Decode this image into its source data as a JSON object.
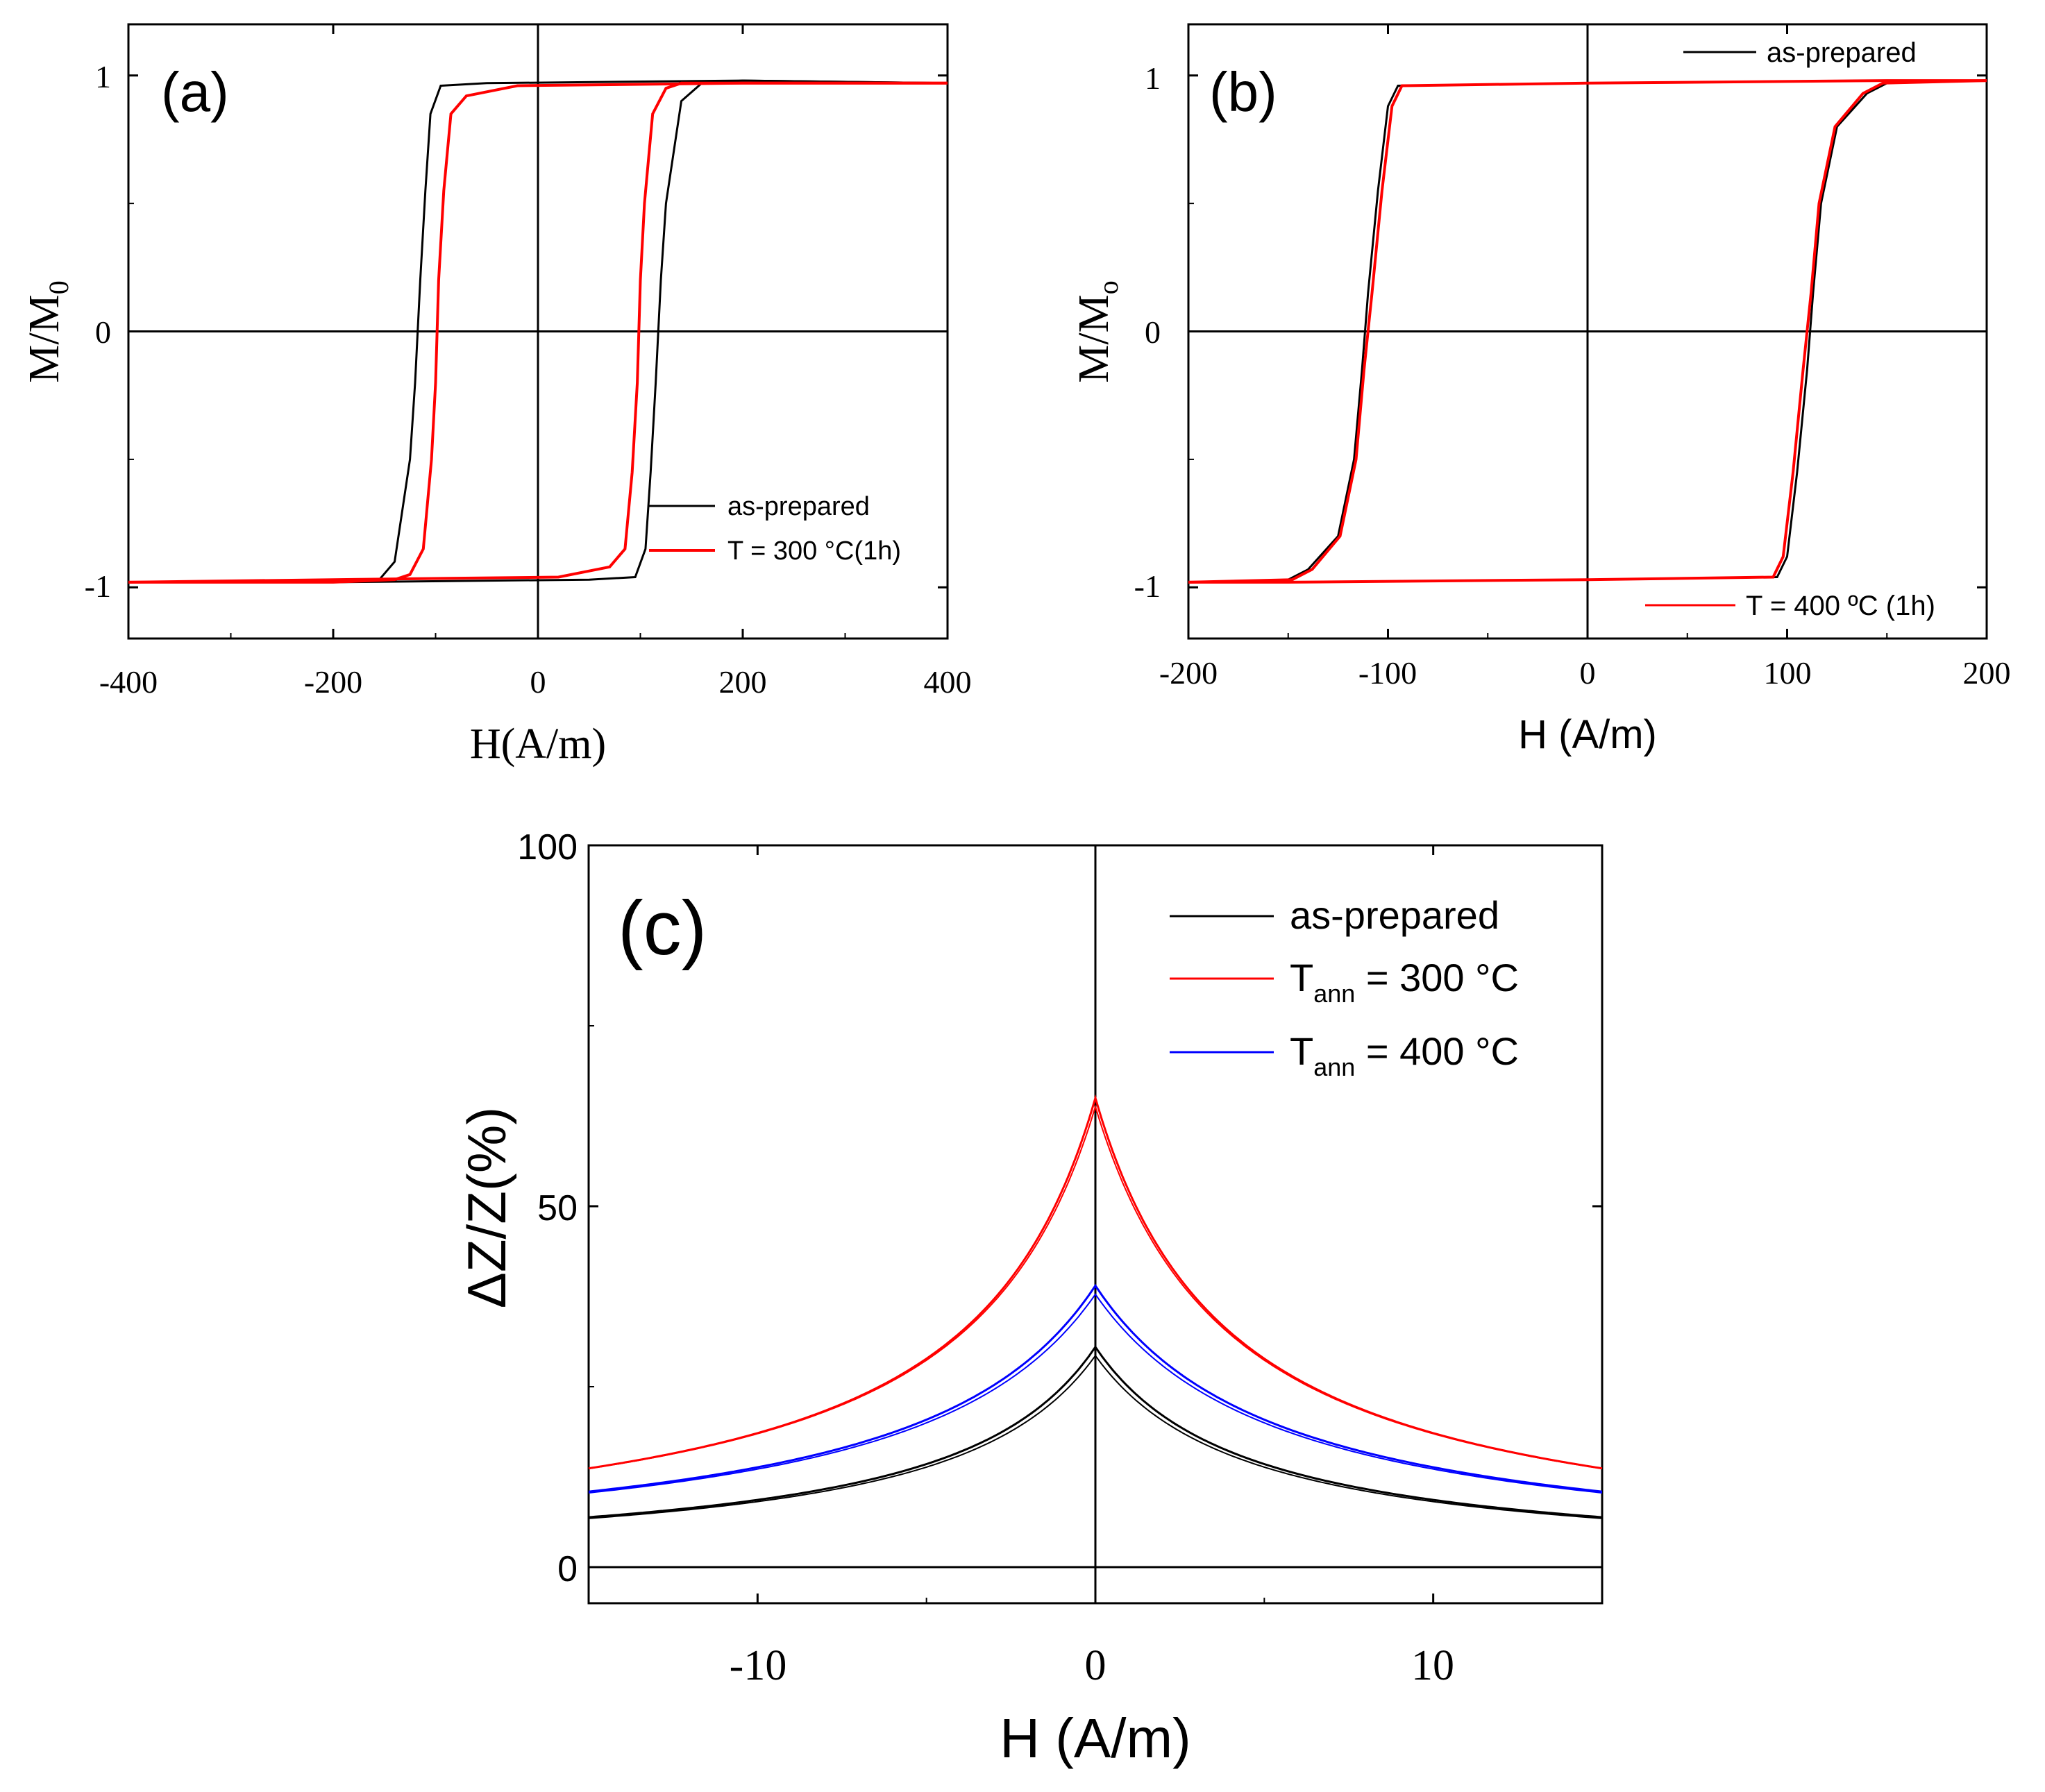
{
  "chart_data": [
    {
      "type": "line",
      "panel_label": "(a)",
      "title": "",
      "xlabel": "H(A/m)",
      "ylabel": "M/M",
      "ylabel_sub": "0",
      "xlim": [
        -400,
        400
      ],
      "ylim": [
        -1.2,
        1.2
      ],
      "xticks": [
        -400,
        -200,
        0,
        200,
        400
      ],
      "xtick_labels": [
        "-400",
        "-200",
        "0",
        "200",
        "400"
      ],
      "yticks": [
        -1,
        0,
        1
      ],
      "ytick_labels": [
        "-1",
        "0",
        "1"
      ],
      "legend_position": "bottom-right",
      "series": [
        {
          "name": "as-prepared",
          "color": "#000000",
          "descending": {
            "x": [
              400,
              200,
              -50,
              -95,
              -105,
              -110,
              -115,
              -120,
              -125,
              -140,
              -155,
              -200,
              -400
            ],
            "y": [
              0.97,
              0.98,
              0.97,
              0.96,
              0.85,
              0.55,
              0.2,
              -0.2,
              -0.5,
              -0.9,
              -0.97,
              -0.98,
              -0.98
            ]
          },
          "ascending": {
            "x": [
              -400,
              -200,
              50,
              95,
              105,
              110,
              115,
              120,
              125,
              140,
              160,
              200,
              400
            ],
            "y": [
              -0.98,
              -0.98,
              -0.97,
              -0.96,
              -0.85,
              -0.55,
              -0.2,
              0.2,
              0.5,
              0.9,
              0.97,
              0.98,
              0.97
            ]
          }
        },
        {
          "name": "T = 300 °C(1h)",
          "color": "#ff0000",
          "descending": {
            "x": [
              400,
              200,
              -20,
              -70,
              -85,
              -92,
              -97,
              -100,
              -104,
              -112,
              -125,
              -140,
              -200,
              -400
            ],
            "y": [
              0.97,
              0.97,
              0.96,
              0.92,
              0.85,
              0.55,
              0.2,
              -0.2,
              -0.5,
              -0.85,
              -0.95,
              -0.97,
              -0.98,
              -0.98
            ]
          },
          "ascending": {
            "x": [
              -400,
              -200,
              20,
              70,
              85,
              92,
              97,
              100,
              104,
              112,
              125,
              140,
              200,
              400
            ],
            "y": [
              -0.98,
              -0.97,
              -0.96,
              -0.92,
              -0.85,
              -0.55,
              -0.2,
              0.2,
              0.5,
              0.85,
              0.95,
              0.97,
              0.97,
              0.97
            ]
          }
        }
      ]
    },
    {
      "type": "line",
      "panel_label": "(b)",
      "title": "",
      "xlabel": "H (A/m)",
      "ylabel": "M/M",
      "ylabel_sub": "o",
      "xlim": [
        -200,
        200
      ],
      "ylim": [
        -1.2,
        1.2
      ],
      "xticks": [
        -200,
        -100,
        0,
        100,
        200
      ],
      "xtick_labels": [
        "-200",
        "-100",
        "0",
        "100",
        "200"
      ],
      "yticks": [
        -1,
        0,
        1
      ],
      "ytick_labels": [
        "-1",
        "0",
        "1"
      ],
      "legend_position": "top-right / bottom-right",
      "series": [
        {
          "name": "as-prepared",
          "color": "#000000",
          "descending": {
            "x": [
              200,
              150,
              0,
              -95,
              -100,
              -105,
              -110,
              -113,
              -117,
              -125,
              -140,
              -150,
              -200
            ],
            "y": [
              0.98,
              0.98,
              0.97,
              0.96,
              0.88,
              0.55,
              0.15,
              -0.15,
              -0.5,
              -0.8,
              -0.93,
              -0.97,
              -0.98
            ]
          },
          "ascending": {
            "x": [
              -200,
              -150,
              0,
              95,
              100,
              105,
              110,
              113,
              117,
              125,
              140,
              150,
              200
            ],
            "y": [
              -0.98,
              -0.98,
              -0.97,
              -0.96,
              -0.88,
              -0.55,
              -0.15,
              0.15,
              0.5,
              0.8,
              0.93,
              0.97,
              0.98
            ]
          }
        },
        {
          "name": "T = 400 ºC (1h)",
          "color": "#ff0000",
          "descending": {
            "x": [
              200,
              150,
              0,
              -93,
              -98,
              -103,
              -108,
              -112,
              -116,
              -124,
              -138,
              -148,
              -200
            ],
            "y": [
              0.98,
              0.98,
              0.97,
              0.96,
              0.88,
              0.55,
              0.15,
              -0.15,
              -0.5,
              -0.8,
              -0.93,
              -0.97,
              -0.98
            ]
          },
          "ascending": {
            "x": [
              -200,
              -150,
              0,
              93,
              98,
              103,
              108,
              112,
              116,
              124,
              138,
              148,
              200
            ],
            "y": [
              -0.98,
              -0.98,
              -0.97,
              -0.96,
              -0.88,
              -0.55,
              -0.15,
              0.15,
              0.5,
              0.8,
              0.93,
              0.97,
              0.98
            ]
          }
        }
      ]
    },
    {
      "type": "line",
      "panel_label": "(c)",
      "title": "",
      "xlabel": "H (A/m)",
      "ylabel": "ΔZ/Z(%)",
      "xlim": [
        -15,
        15
      ],
      "ylim": [
        -5,
        100
      ],
      "xticks": [
        -10,
        0,
        10
      ],
      "xtick_labels": [
        "-10",
        "0",
        "10"
      ],
      "yticks": [
        0,
        50,
        100
      ],
      "ytick_labels": [
        "0",
        "50",
        "100"
      ],
      "legend_position": "top-right",
      "series": [
        {
          "name": "as-prepared",
          "legend_main": "as-prepared",
          "legend_sub": "",
          "legend_rest": "",
          "color": "#000000",
          "peak": 30.5,
          "decay": 4.4
        },
        {
          "name": "T_ann = 300 °C",
          "legend_main": "T",
          "legend_sub": "ann",
          "legend_rest": " = 300 °C",
          "color": "#ff0000",
          "peak": 65,
          "decay": 4.0
        },
        {
          "name": "T_ann = 400 °C",
          "legend_main": "T",
          "legend_sub": "ann",
          "legend_rest": " = 400 °C",
          "color": "#0000ff",
          "peak": 39,
          "decay": 5.5
        }
      ]
    }
  ]
}
